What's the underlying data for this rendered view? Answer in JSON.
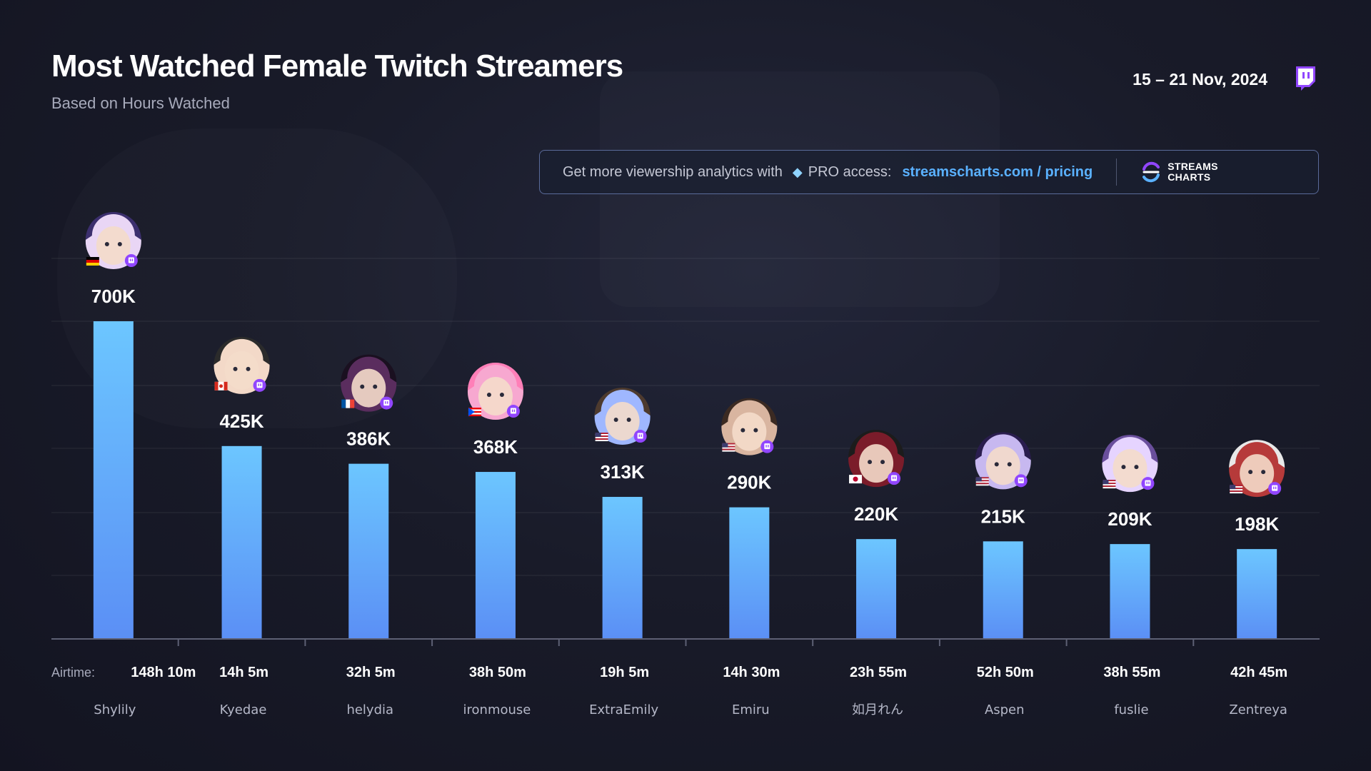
{
  "header": {
    "title": "Most Watched Female Twitch Streamers",
    "subtitle": "Based on Hours Watched",
    "date_range": "15 – 21 Nov, 2024",
    "platform_icon": "twitch-icon"
  },
  "promo": {
    "text": "Get more viewership analytics with",
    "pro_label": "PRO access:",
    "link": "streamscharts.com / pricing",
    "brand_line1": "STREAMS",
    "brand_line2": "CHARTS",
    "gem_icon": "diamond-icon"
  },
  "airtime_prefix": "Airtime:",
  "colors": {
    "bar_top": "#6cc6ff",
    "bar_bottom": "#5b8ff5",
    "accent": "#9146ff"
  },
  "chart_data": {
    "type": "bar",
    "title": "Most Watched Female Twitch Streamers",
    "subtitle": "Based on Hours Watched",
    "categories": [
      "Shylily",
      "Kyedae",
      "helydia",
      "ironmouse",
      "ExtraEmily",
      "Emiru",
      "如月れん",
      "Aspen",
      "fuslie",
      "Zentreya"
    ],
    "values": [
      700000,
      425000,
      386000,
      368000,
      313000,
      290000,
      220000,
      215000,
      209000,
      198000
    ],
    "value_labels": [
      "700K",
      "425K",
      "386K",
      "368K",
      "313K",
      "290K",
      "220K",
      "215K",
      "209K",
      "198K"
    ],
    "airtime": [
      "148h 10m",
      "14h 5m",
      "32h 5m",
      "38h 50m",
      "19h 5m",
      "14h 30m",
      "23h 55m",
      "52h 50m",
      "38h 55m",
      "42h 45m"
    ],
    "countries": [
      "DE",
      "CA",
      "FR",
      "PR",
      "US",
      "US",
      "JP",
      "US",
      "US",
      "US"
    ],
    "ylim": [
      0,
      700000
    ],
    "grid": true,
    "legend": "none"
  }
}
